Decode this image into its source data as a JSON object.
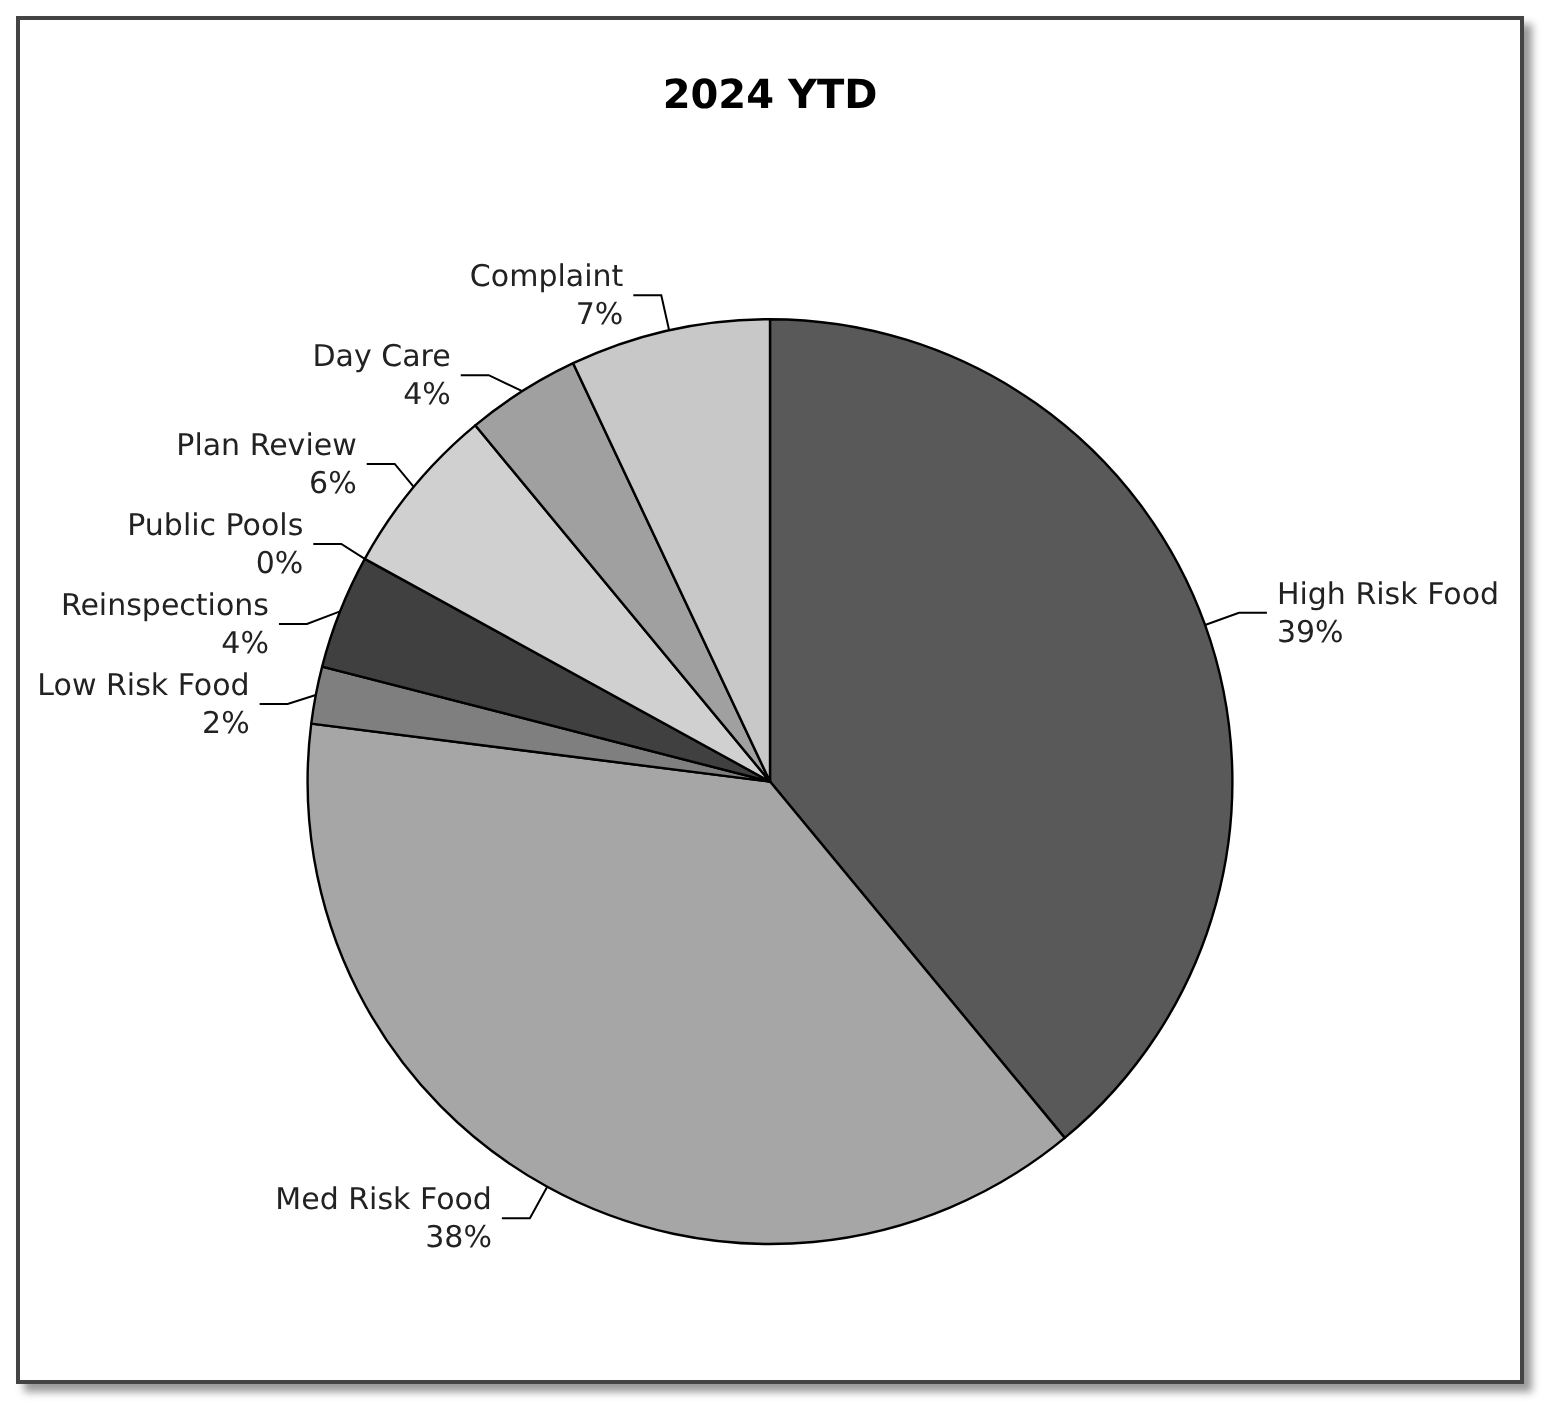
{
  "chart_data": {
    "type": "pie",
    "title": "2024 YTD",
    "categories": [
      "High Risk Food",
      "Med Risk Food",
      "Low Risk Food",
      "Reinspections",
      "Public Pools",
      "Plan Review",
      "Day Care",
      "Complaint"
    ],
    "values": [
      39,
      38,
      2,
      4,
      0,
      6,
      4,
      7
    ],
    "colors": [
      "#595959",
      "#a6a6a6",
      "#7f7f7f",
      "#404040",
      "#8c8c8c",
      "#d0d0d0",
      "#a0a0a0",
      "#c8c8c8"
    ],
    "value_labels": [
      "39%",
      "38%",
      "2%",
      "4%",
      "0%",
      "6%",
      "4%",
      "7%"
    ],
    "legend": false
  }
}
